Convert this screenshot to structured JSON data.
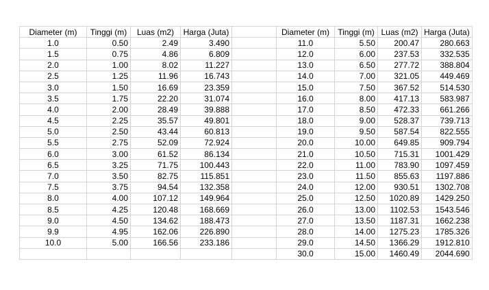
{
  "headers": [
    "Diameter (m)",
    "Tinggi (m)",
    "Luas (m2)",
    "Harga (Juta)"
  ],
  "left": [
    [
      "1.0",
      "0.50",
      "2.49",
      "3.490"
    ],
    [
      "1.5",
      "0.75",
      "4.86",
      "6.809"
    ],
    [
      "2.0",
      "1.00",
      "8.02",
      "11.227"
    ],
    [
      "2.5",
      "1.25",
      "11.96",
      "16.743"
    ],
    [
      "3.0",
      "1.50",
      "16.69",
      "23.359"
    ],
    [
      "3.5",
      "1.75",
      "22.20",
      "31.074"
    ],
    [
      "4.0",
      "2.00",
      "28.49",
      "39.888"
    ],
    [
      "4.5",
      "2.25",
      "35.57",
      "49.801"
    ],
    [
      "5.0",
      "2.50",
      "43.44",
      "60.813"
    ],
    [
      "5.5",
      "2.75",
      "52.09",
      "72.924"
    ],
    [
      "6.0",
      "3.00",
      "61.52",
      "86.134"
    ],
    [
      "6.5",
      "3.25",
      "71.75",
      "100.443"
    ],
    [
      "7.0",
      "3.50",
      "82.75",
      "115.851"
    ],
    [
      "7.5",
      "3.75",
      "94.54",
      "132.358"
    ],
    [
      "8.0",
      "4.00",
      "107.12",
      "149.964"
    ],
    [
      "8.5",
      "4.25",
      "120.48",
      "168.669"
    ],
    [
      "9.0",
      "4.50",
      "134.62",
      "188.473"
    ],
    [
      "9.9",
      "4.95",
      "162.06",
      "226.890"
    ],
    [
      "10.0",
      "5.00",
      "166.56",
      "233.186"
    ],
    [
      "",
      "",
      "",
      ""
    ]
  ],
  "right": [
    [
      "11.0",
      "5.50",
      "200.47",
      "280.663"
    ],
    [
      "12.0",
      "6.00",
      "237.53",
      "332.535"
    ],
    [
      "13.0",
      "6.50",
      "277.72",
      "388.804"
    ],
    [
      "14.0",
      "7.00",
      "321.05",
      "449.469"
    ],
    [
      "15.0",
      "7.50",
      "367.52",
      "514.530"
    ],
    [
      "16.0",
      "8.00",
      "417.13",
      "583.987"
    ],
    [
      "17.0",
      "8.50",
      "472.33",
      "661.266"
    ],
    [
      "18.0",
      "9.00",
      "528.37",
      "739.713"
    ],
    [
      "19.0",
      "9.50",
      "587.54",
      "822.555"
    ],
    [
      "20.0",
      "10.00",
      "649.85",
      "909.794"
    ],
    [
      "21.0",
      "10.50",
      "715.31",
      "1001.429"
    ],
    [
      "22.0",
      "11.00",
      "783.90",
      "1097.459"
    ],
    [
      "23.0",
      "11.50",
      "855.63",
      "1197.886"
    ],
    [
      "24.0",
      "12.00",
      "930.51",
      "1302.708"
    ],
    [
      "25.0",
      "12.50",
      "1020.89",
      "1429.250"
    ],
    [
      "26.0",
      "13.00",
      "1102.53",
      "1543.546"
    ],
    [
      "27.0",
      "13.50",
      "1187.31",
      "1662.238"
    ],
    [
      "28.0",
      "14.00",
      "1275.23",
      "1785.326"
    ],
    [
      "29.0",
      "14.50",
      "1366.29",
      "1912.810"
    ],
    [
      "30.0",
      "15.00",
      "1460.49",
      "2044.690"
    ]
  ]
}
